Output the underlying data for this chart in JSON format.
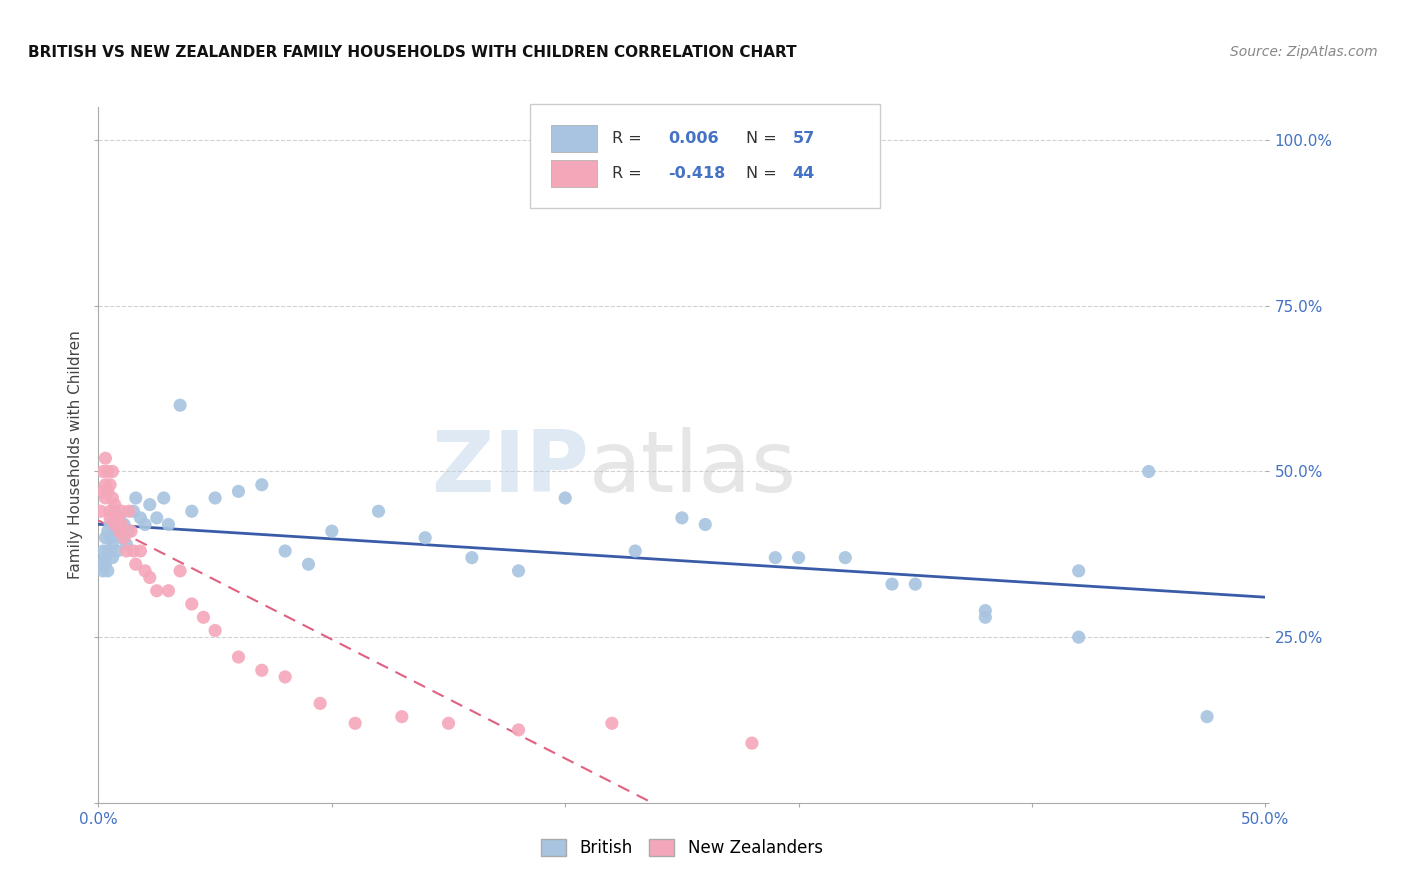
{
  "title": "BRITISH VS NEW ZEALANDER FAMILY HOUSEHOLDS WITH CHILDREN CORRELATION CHART",
  "source": "Source: ZipAtlas.com",
  "ylabel": "Family Households with Children",
  "xlim": [
    0.0,
    0.5
  ],
  "ylim": [
    0.0,
    1.05
  ],
  "x_ticks": [
    0.0,
    0.1,
    0.2,
    0.3,
    0.4,
    0.5
  ],
  "x_tick_labels": [
    "0.0%",
    "",
    "",
    "",
    "",
    "50.0%"
  ],
  "y_ticks": [
    0.0,
    0.25,
    0.5,
    0.75,
    1.0
  ],
  "y_tick_labels": [
    "",
    "25.0%",
    "50.0%",
    "75.0%",
    "100.0%"
  ],
  "british_color": "#a8c4e0",
  "nz_color": "#f4a7b9",
  "british_line_color": "#3a5ca8",
  "nz_line_color": "#e06080",
  "background_color": "#ffffff",
  "grid_color": "#cccccc",
  "british_x": [
    0.001,
    0.002,
    0.002,
    0.003,
    0.003,
    0.003,
    0.004,
    0.004,
    0.004,
    0.005,
    0.005,
    0.005,
    0.006,
    0.006,
    0.007,
    0.007,
    0.008,
    0.009,
    0.01,
    0.011,
    0.012,
    0.013,
    0.015,
    0.016,
    0.018,
    0.02,
    0.022,
    0.025,
    0.028,
    0.03,
    0.035,
    0.04,
    0.05,
    0.06,
    0.07,
    0.08,
    0.09,
    0.1,
    0.12,
    0.14,
    0.16,
    0.18,
    0.2,
    0.23,
    0.26,
    0.29,
    0.32,
    0.35,
    0.38,
    0.42,
    0.45,
    0.25,
    0.3,
    0.34,
    0.38,
    0.42,
    0.475
  ],
  "british_y": [
    0.36,
    0.38,
    0.35,
    0.37,
    0.4,
    0.36,
    0.38,
    0.41,
    0.35,
    0.4,
    0.38,
    0.42,
    0.37,
    0.39,
    0.44,
    0.41,
    0.38,
    0.43,
    0.4,
    0.42,
    0.39,
    0.41,
    0.44,
    0.46,
    0.43,
    0.42,
    0.45,
    0.43,
    0.46,
    0.42,
    0.6,
    0.44,
    0.46,
    0.47,
    0.48,
    0.38,
    0.36,
    0.41,
    0.44,
    0.4,
    0.37,
    0.35,
    0.46,
    0.38,
    0.42,
    0.37,
    0.37,
    0.33,
    0.28,
    0.35,
    0.5,
    0.43,
    0.37,
    0.33,
    0.29,
    0.25,
    0.13
  ],
  "nz_x": [
    0.001,
    0.002,
    0.002,
    0.003,
    0.003,
    0.003,
    0.004,
    0.004,
    0.005,
    0.005,
    0.005,
    0.006,
    0.006,
    0.007,
    0.007,
    0.008,
    0.009,
    0.01,
    0.01,
    0.011,
    0.012,
    0.013,
    0.014,
    0.015,
    0.016,
    0.018,
    0.02,
    0.022,
    0.025,
    0.03,
    0.035,
    0.04,
    0.045,
    0.05,
    0.06,
    0.07,
    0.08,
    0.095,
    0.11,
    0.13,
    0.15,
    0.18,
    0.22,
    0.28
  ],
  "nz_y": [
    0.44,
    0.5,
    0.47,
    0.52,
    0.48,
    0.46,
    0.5,
    0.47,
    0.43,
    0.48,
    0.44,
    0.5,
    0.46,
    0.42,
    0.45,
    0.43,
    0.41,
    0.44,
    0.42,
    0.4,
    0.38,
    0.44,
    0.41,
    0.38,
    0.36,
    0.38,
    0.35,
    0.34,
    0.32,
    0.32,
    0.35,
    0.3,
    0.28,
    0.26,
    0.22,
    0.2,
    0.19,
    0.15,
    0.12,
    0.13,
    0.12,
    0.11,
    0.12,
    0.09
  ]
}
